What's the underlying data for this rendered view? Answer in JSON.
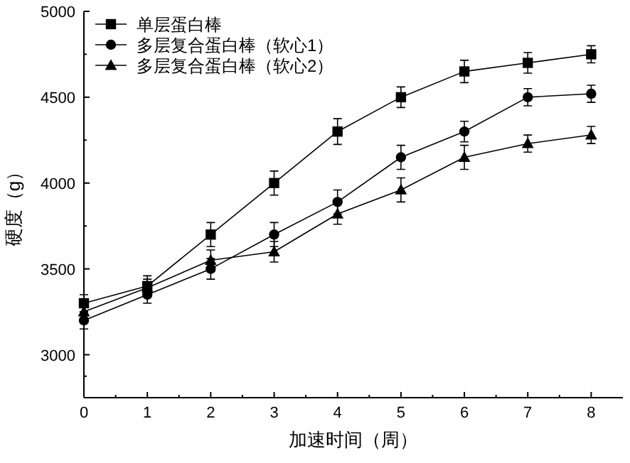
{
  "chart_data": {
    "type": "line",
    "xlabel": "加速时间（周）",
    "ylabel": "硬度（g）",
    "x": [
      0,
      1,
      2,
      3,
      4,
      5,
      6,
      7,
      8
    ],
    "xlim": [
      0,
      8.5
    ],
    "xticks": [
      0,
      1,
      2,
      3,
      4,
      5,
      6,
      7,
      8
    ],
    "ylim": [
      2750,
      5000
    ],
    "yticks": [
      3000,
      3500,
      4000,
      4500,
      5000
    ],
    "grid": false,
    "legend": "top left",
    "line_style": "solid",
    "series": [
      {
        "name": "单层蛋白棒",
        "color": "#000000",
        "marker": "square",
        "values": [
          3300,
          3400,
          3700,
          4000,
          4300,
          4500,
          4650,
          4700,
          4750
        ],
        "errors": [
          50,
          60,
          70,
          70,
          75,
          60,
          65,
          60,
          50
        ]
      },
      {
        "name": "多层复合蛋白棒（软心1）",
        "color": "#000000",
        "marker": "circle",
        "values": [
          3200,
          3350,
          3500,
          3700,
          3890,
          4150,
          4300,
          4500,
          4520
        ],
        "errors": [
          50,
          50,
          60,
          70,
          70,
          70,
          60,
          50,
          50
        ]
      },
      {
        "name": "多层复合蛋白棒（软心2）",
        "color": "#000000",
        "marker": "triangle",
        "values": [
          3250,
          3390,
          3550,
          3600,
          3820,
          3960,
          4150,
          4230,
          4280
        ],
        "errors": [
          50,
          50,
          60,
          60,
          60,
          70,
          70,
          50,
          50
        ]
      }
    ]
  }
}
